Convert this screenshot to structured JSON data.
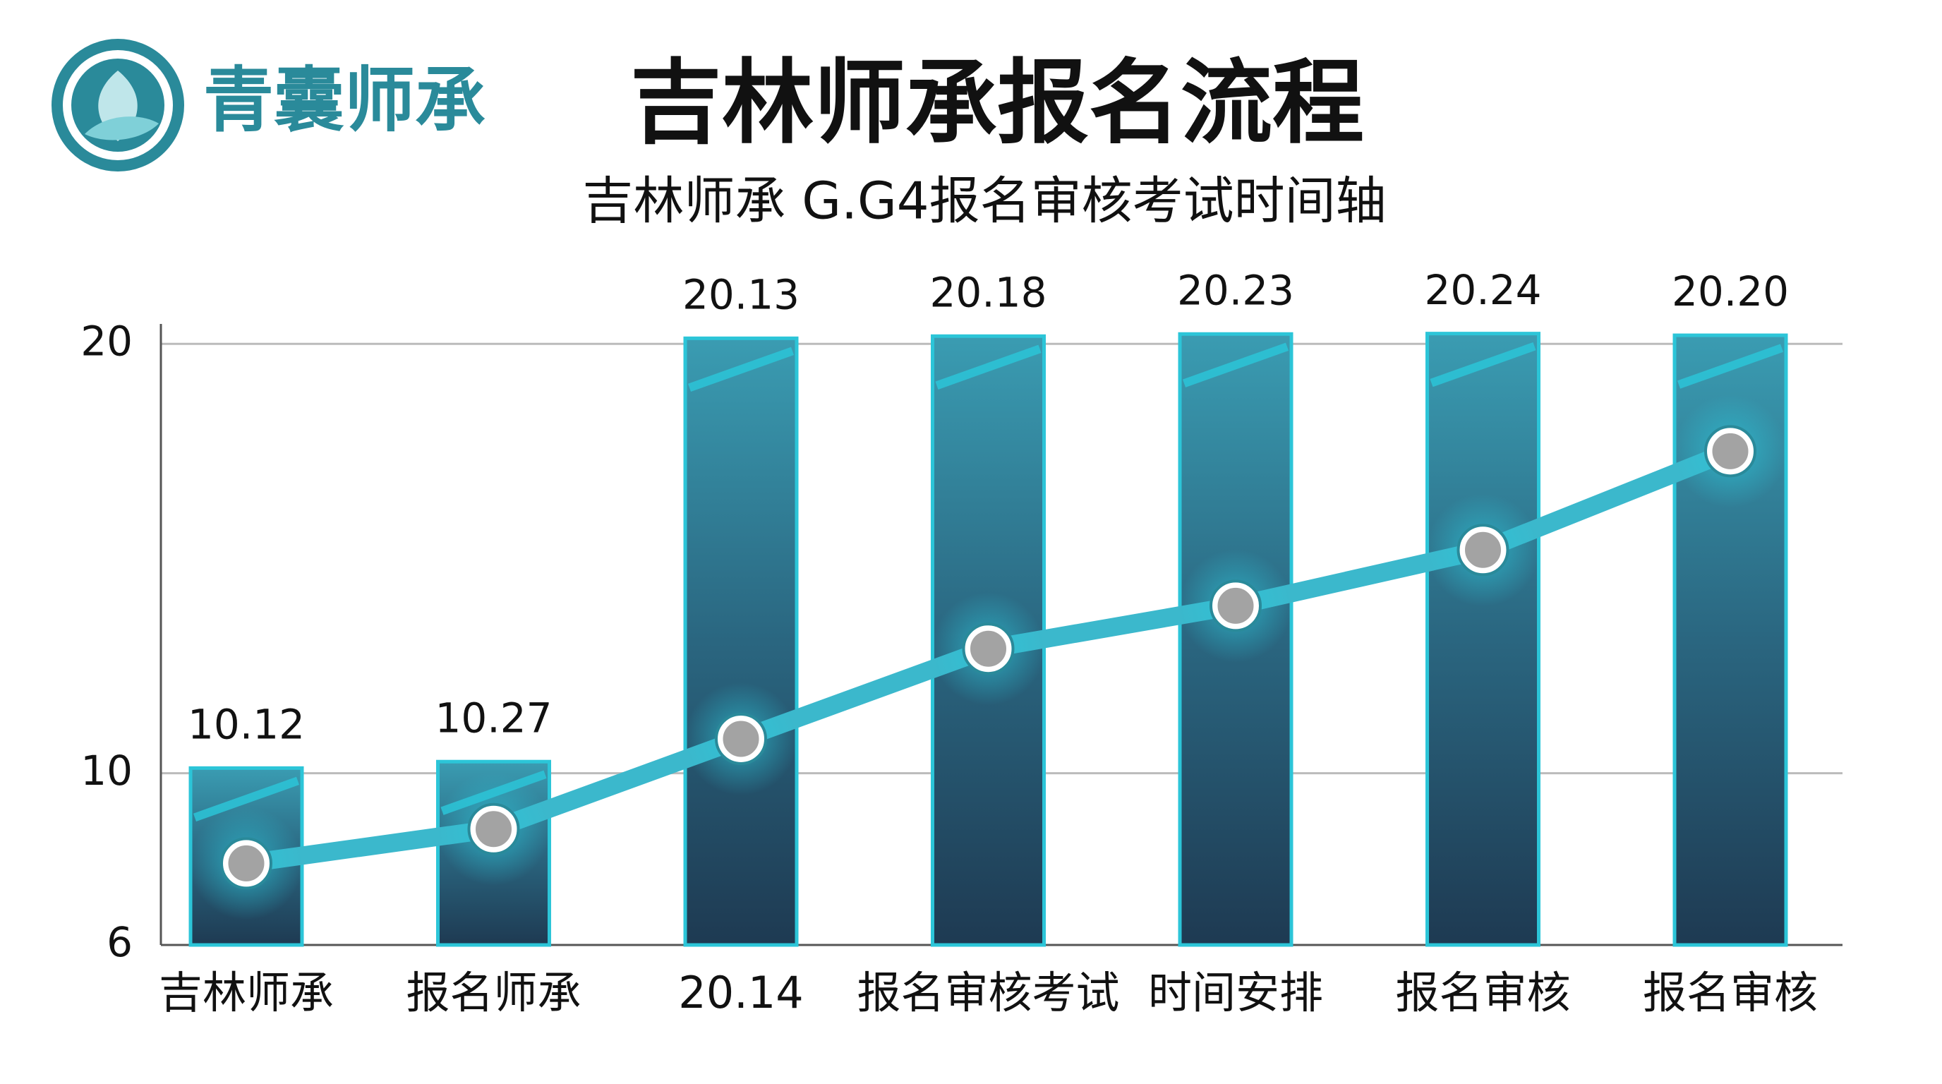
{
  "logo": "青囊师承",
  "chart_data": {
    "type": "bar",
    "title": "吉林师承报名流程",
    "subtitle": "吉林师承 G.G4报名审核考试时间轴",
    "categories": [
      "吉林师承",
      "报名师承",
      "20.14",
      "报名审核考试",
      "时间安排",
      "报名审核",
      "报名审核"
    ],
    "values": [
      10.12,
      10.27,
      20.13,
      20.18,
      20.23,
      20.24,
      20.2
    ],
    "value_labels": [
      "10.12",
      "10.27",
      "20.13",
      "20.18",
      "20.23",
      "20.24",
      "20.20"
    ],
    "color": "#2cc5d8",
    "line": {
      "values": [
        7.9,
        8.7,
        10.8,
        12.9,
        13.9,
        15.2,
        17.5
      ],
      "color": "#3bb8cc"
    },
    "ylim": [
      6,
      20.3
    ],
    "yticks": [
      6,
      10,
      20
    ],
    "grid": true
  }
}
